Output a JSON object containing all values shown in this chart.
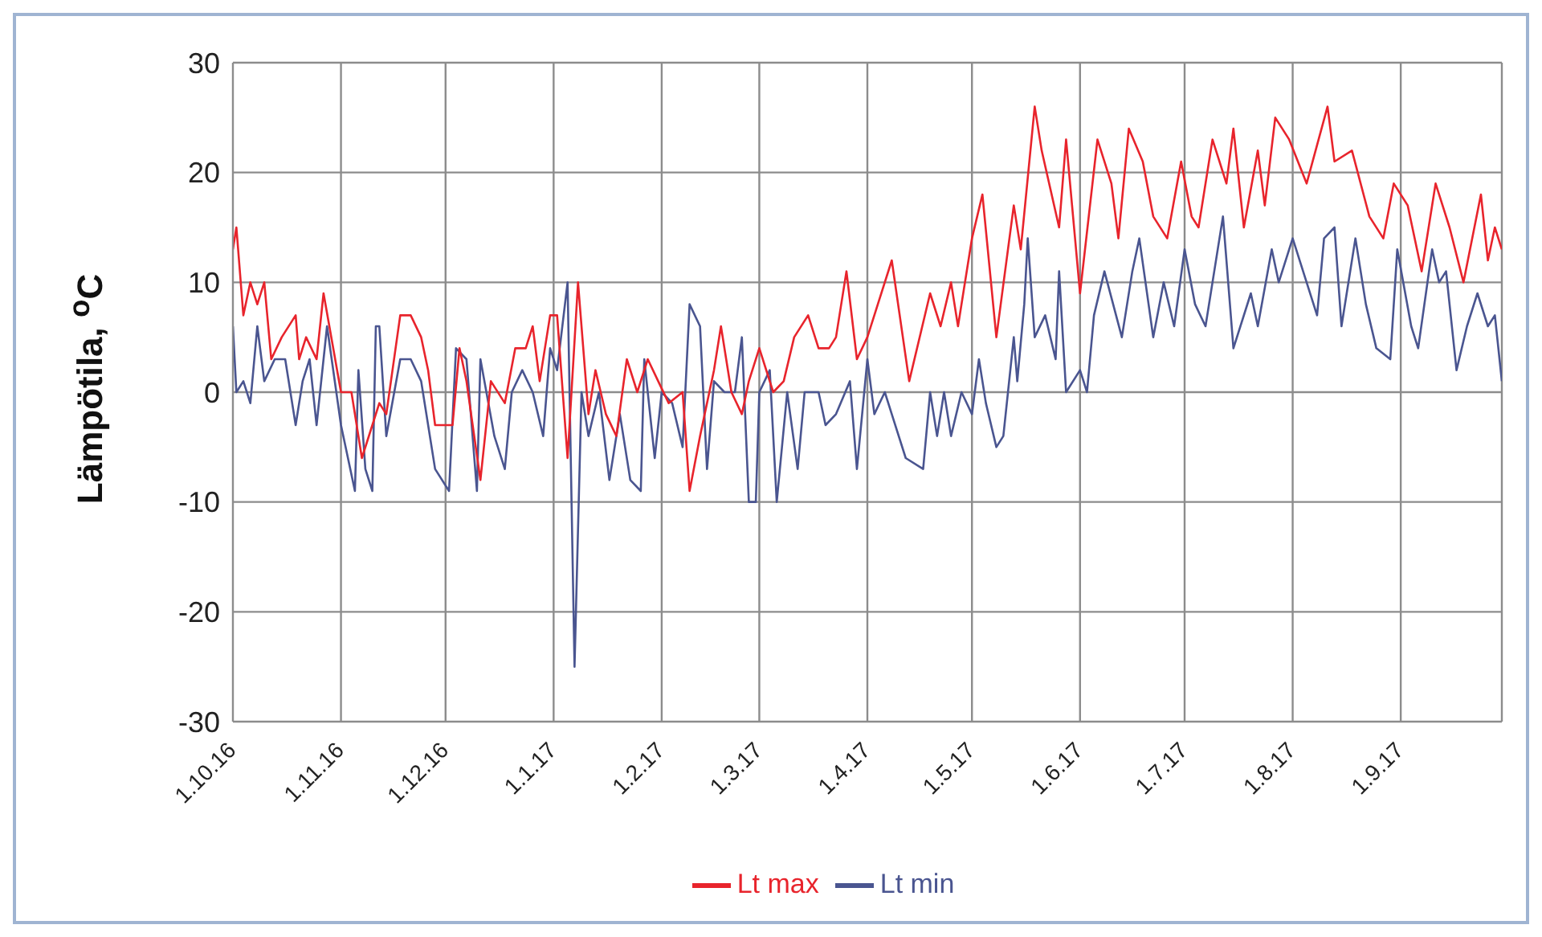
{
  "chart_data": {
    "type": "line",
    "ylabel": "Lämpötila, $^{o}$C",
    "xlim": [
      "2016-10-01",
      "2017-09-30"
    ],
    "xticks": [
      {
        "value": "2016-10-01",
        "label": "1.10.16"
      },
      {
        "value": "2016-11-01",
        "label": "1.11.16"
      },
      {
        "value": "2016-12-01",
        "label": "1.12.16"
      },
      {
        "value": "2017-01-01",
        "label": "1.1.17"
      },
      {
        "value": "2017-02-01",
        "label": "1.2.17"
      },
      {
        "value": "2017-03-01",
        "label": "1.3.17"
      },
      {
        "value": "2017-04-01",
        "label": "1.4.17"
      },
      {
        "value": "2017-05-01",
        "label": "1.5.17"
      },
      {
        "value": "2017-06-01",
        "label": "1.6.17"
      },
      {
        "value": "2017-07-01",
        "label": "1.7.17"
      },
      {
        "value": "2017-08-01",
        "label": "1.8.17"
      },
      {
        "value": "2017-09-01",
        "label": "1.9.17"
      }
    ],
    "ylim": [
      -30,
      30
    ],
    "yticks": [
      -30,
      -20,
      -10,
      0,
      10,
      20,
      30
    ],
    "grid": true,
    "legend": "bottom",
    "marker": "none",
    "series": [
      {
        "name": "Lt min",
        "color": "#4a5590",
        "x": [
          "2016-10-01",
          "2016-10-02",
          "2016-10-04",
          "2016-10-06",
          "2016-10-08",
          "2016-10-10",
          "2016-10-13",
          "2016-10-16",
          "2016-10-19",
          "2016-10-21",
          "2016-10-23",
          "2016-10-25",
          "2016-10-28",
          "2016-11-01",
          "2016-11-05",
          "2016-11-06",
          "2016-11-08",
          "2016-11-10",
          "2016-11-11",
          "2016-11-12",
          "2016-11-14",
          "2016-11-18",
          "2016-11-21",
          "2016-11-24",
          "2016-11-28",
          "2016-12-02",
          "2016-12-04",
          "2016-12-07",
          "2016-12-10",
          "2016-12-11",
          "2016-12-15",
          "2016-12-18",
          "2016-12-20",
          "2016-12-23",
          "2016-12-26",
          "2016-12-29",
          "2016-12-31",
          "2017-01-02",
          "2017-01-05",
          "2017-01-07",
          "2017-01-09",
          "2017-01-11",
          "2017-01-14",
          "2017-01-17",
          "2017-01-20",
          "2017-01-23",
          "2017-01-26",
          "2017-01-27",
          "2017-01-30",
          "2017-02-01",
          "2017-02-04",
          "2017-02-07",
          "2017-02-09",
          "2017-02-12",
          "2017-02-14",
          "2017-02-16",
          "2017-02-19",
          "2017-02-22",
          "2017-02-24",
          "2017-02-26",
          "2017-02-28",
          "2017-03-01",
          "2017-03-04",
          "2017-03-06",
          "2017-03-09",
          "2017-03-12",
          "2017-03-14",
          "2017-03-18",
          "2017-03-20",
          "2017-03-23",
          "2017-03-27",
          "2017-03-29",
          "2017-04-01",
          "2017-04-03",
          "2017-04-06",
          "2017-04-08",
          "2017-04-12",
          "2017-04-17",
          "2017-04-19",
          "2017-04-21",
          "2017-04-23",
          "2017-04-25",
          "2017-04-28",
          "2017-05-01",
          "2017-05-03",
          "2017-05-05",
          "2017-05-08",
          "2017-05-10",
          "2017-05-13",
          "2017-05-14",
          "2017-05-16",
          "2017-05-17",
          "2017-05-19",
          "2017-05-22",
          "2017-05-25",
          "2017-05-26",
          "2017-05-28",
          "2017-06-01",
          "2017-06-03",
          "2017-06-05",
          "2017-06-08",
          "2017-06-13",
          "2017-06-16",
          "2017-06-18",
          "2017-06-22",
          "2017-06-25",
          "2017-06-28",
          "2017-07-01",
          "2017-07-04",
          "2017-07-07",
          "2017-07-09",
          "2017-07-12",
          "2017-07-15",
          "2017-07-20",
          "2017-07-22",
          "2017-07-26",
          "2017-07-28",
          "2017-08-01",
          "2017-08-05",
          "2017-08-08",
          "2017-08-10",
          "2017-08-13",
          "2017-08-15",
          "2017-08-19",
          "2017-08-22",
          "2017-08-25",
          "2017-08-29",
          "2017-08-31",
          "2017-09-04",
          "2017-09-06",
          "2017-09-10",
          "2017-09-12",
          "2017-09-14",
          "2017-09-17",
          "2017-09-20",
          "2017-09-23",
          "2017-09-26",
          "2017-09-28",
          "2017-09-30"
        ],
        "values": [
          6,
          0,
          1,
          -1,
          6,
          1,
          3,
          3,
          -3,
          1,
          3,
          -3,
          6,
          -3,
          -9,
          2,
          -7,
          -9,
          6,
          6,
          -4,
          3,
          3,
          1,
          -7,
          -9,
          4,
          3,
          -9,
          3,
          -4,
          -7,
          0,
          2,
          0,
          -4,
          4,
          2,
          10,
          -25,
          0,
          -4,
          0,
          -8,
          -2,
          -8,
          -9,
          3,
          -6,
          0,
          -1,
          -5,
          8,
          6,
          -7,
          1,
          0,
          0,
          5,
          -10,
          -10,
          0,
          2,
          -10,
          0,
          -7,
          0,
          0,
          -3,
          -2,
          1,
          -7,
          3,
          -2,
          0,
          -2,
          -6,
          -7,
          0,
          -4,
          0,
          -4,
          0,
          -2,
          3,
          -1,
          -5,
          -4,
          5,
          1,
          8,
          14,
          5,
          7,
          3,
          11,
          0,
          2,
          0,
          7,
          11,
          5,
          11,
          14,
          5,
          10,
          6,
          13,
          8,
          6,
          10,
          16,
          4,
          9,
          6,
          13,
          10,
          14,
          10,
          7,
          14,
          15,
          6,
          14,
          8,
          4,
          3,
          13,
          6,
          4,
          13,
          10,
          11,
          2,
          6,
          9,
          6,
          7,
          1
        ]
      },
      {
        "name": "Lt max",
        "color": "#e8242c",
        "x": [
          "2016-10-01",
          "2016-10-02",
          "2016-10-04",
          "2016-10-06",
          "2016-10-08",
          "2016-10-10",
          "2016-10-12",
          "2016-10-15",
          "2016-10-19",
          "2016-10-20",
          "2016-10-22",
          "2016-10-25",
          "2016-10-27",
          "2016-11-01",
          "2016-11-04",
          "2016-11-07",
          "2016-11-10",
          "2016-11-12",
          "2016-11-14",
          "2016-11-18",
          "2016-11-21",
          "2016-11-24",
          "2016-11-26",
          "2016-11-28",
          "2016-12-03",
          "2016-12-05",
          "2016-12-07",
          "2016-12-11",
          "2016-12-14",
          "2016-12-18",
          "2016-12-21",
          "2016-12-24",
          "2016-12-26",
          "2016-12-28",
          "2016-12-31",
          "2017-01-02",
          "2017-01-05",
          "2017-01-08",
          "2017-01-11",
          "2017-01-13",
          "2017-01-16",
          "2017-01-19",
          "2017-01-22",
          "2017-01-25",
          "2017-01-28",
          "2017-01-31",
          "2017-02-03",
          "2017-02-07",
          "2017-02-09",
          "2017-02-12",
          "2017-02-16",
          "2017-02-18",
          "2017-02-21",
          "2017-02-24",
          "2017-02-26",
          "2017-03-01",
          "2017-03-05",
          "2017-03-08",
          "2017-03-11",
          "2017-03-15",
          "2017-03-18",
          "2017-03-21",
          "2017-03-23",
          "2017-03-26",
          "2017-03-29",
          "2017-04-01",
          "2017-04-04",
          "2017-04-08",
          "2017-04-13",
          "2017-04-19",
          "2017-04-22",
          "2017-04-25",
          "2017-04-27",
          "2017-05-01",
          "2017-05-04",
          "2017-05-08",
          "2017-05-13",
          "2017-05-15",
          "2017-05-19",
          "2017-05-21",
          "2017-05-26",
          "2017-05-28",
          "2017-06-01",
          "2017-06-06",
          "2017-06-10",
          "2017-06-12",
          "2017-06-15",
          "2017-06-19",
          "2017-06-22",
          "2017-06-26",
          "2017-06-30",
          "2017-07-03",
          "2017-07-05",
          "2017-07-09",
          "2017-07-13",
          "2017-07-15",
          "2017-07-18",
          "2017-07-22",
          "2017-07-24",
          "2017-07-27",
          "2017-07-31",
          "2017-08-05",
          "2017-08-11",
          "2017-08-13",
          "2017-08-18",
          "2017-08-23",
          "2017-08-27",
          "2017-08-30",
          "2017-09-03",
          "2017-09-07",
          "2017-09-11",
          "2017-09-15",
          "2017-09-19",
          "2017-09-24",
          "2017-09-26",
          "2017-09-28",
          "2017-09-30"
        ],
        "values": [
          13,
          15,
          7,
          10,
          8,
          10,
          3,
          5,
          7,
          3,
          5,
          3,
          9,
          0,
          0,
          -6,
          -3,
          -1,
          -2,
          7,
          7,
          5,
          2,
          -3,
          -3,
          4,
          1,
          -8,
          1,
          -1,
          4,
          4,
          6,
          1,
          7,
          7,
          -6,
          10,
          -2,
          2,
          -2,
          -4,
          3,
          0,
          3,
          1,
          -1,
          0,
          -9,
          -4,
          2,
          6,
          0,
          -2,
          1,
          4,
          0,
          1,
          5,
          7,
          4,
          4,
          5,
          11,
          3,
          5,
          8,
          12,
          1,
          9,
          6,
          10,
          6,
          14,
          18,
          5,
          17,
          13,
          26,
          22,
          15,
          23,
          9,
          23,
          19,
          14,
          24,
          21,
          16,
          14,
          21,
          16,
          15,
          23,
          19,
          24,
          15,
          22,
          17,
          25,
          23,
          19,
          26,
          21,
          22,
          16,
          14,
          19,
          17,
          11,
          19,
          15,
          10,
          18,
          12,
          15,
          13
        ]
      }
    ]
  }
}
